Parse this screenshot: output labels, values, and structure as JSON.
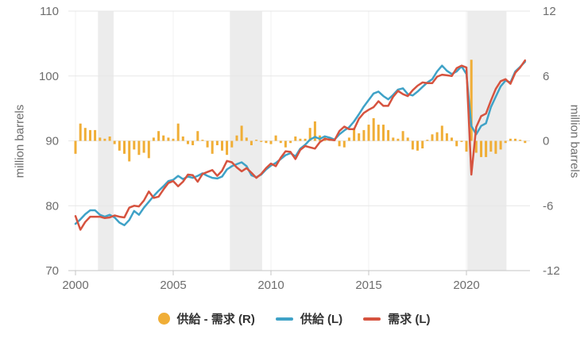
{
  "colors": {
    "background": "#ffffff",
    "bar": "#F0AE37",
    "supply_line": "#3FA2C7",
    "demand_line": "#D6533F",
    "recession_band": "#ececec",
    "gridline": "#e7e7e7",
    "vertical_gridline": "#f0f0f0",
    "axis_line": "#c4c4c4",
    "tick_text": "#6d6d6d",
    "legend_text": "#333333"
  },
  "legend": {
    "items": [
      {
        "label": "供給 - 需求 (R)",
        "marker": "circle",
        "color": "#F0AE37"
      },
      {
        "label": "供給 (L)",
        "marker": "line",
        "color": "#3FA2C7"
      },
      {
        "label": "需求 (L)",
        "marker": "line",
        "color": "#D6533F"
      }
    ]
  },
  "chart_data": {
    "type": "combo-bar-line",
    "title": "",
    "frequency": "quarterly",
    "x_start_year": 2000,
    "x_step_years": 0.25,
    "x_axis": {
      "tick_labels": [
        "2000",
        "2005",
        "2010",
        "2015",
        "2020"
      ],
      "tick_years": [
        2000,
        2005,
        2010,
        2015,
        2020
      ]
    },
    "left_axis": {
      "label": "million barrels",
      "ticks": [
        70,
        80,
        90,
        100,
        110
      ],
      "range": [
        70,
        110
      ]
    },
    "right_axis": {
      "label": "million barrels",
      "ticks": [
        -12,
        -6,
        0,
        6,
        12
      ],
      "range": [
        -12,
        12
      ]
    },
    "recession_bands_years": [
      [
        2001.15,
        2001.95
      ],
      [
        2007.9,
        2009.55
      ],
      [
        2020.05,
        2022.05
      ]
    ],
    "series": [
      {
        "name": "供給 - 需求 (R)",
        "type": "bar",
        "axis": "right",
        "color": "#F0AE37",
        "values": [
          -1.2,
          1.6,
          1.2,
          1.0,
          1.0,
          0.3,
          0.2,
          0.4,
          -0.3,
          -0.9,
          -1.2,
          -1.9,
          -0.8,
          -1.3,
          -1.1,
          -1.6,
          0.3,
          0.9,
          0.5,
          0.3,
          0.2,
          1.6,
          0.4,
          -0.3,
          -0.4,
          0.9,
          0.1,
          -0.6,
          -1.2,
          -0.4,
          -0.9,
          -1.3,
          -0.6,
          0.5,
          1.4,
          0.3,
          -0.4,
          0.1,
          -0.1,
          -0.2,
          -0.3,
          0.5,
          -0.2,
          -0.6,
          -0.2,
          0.4,
          0.2,
          0.2,
          1.2,
          1.8,
          0.5,
          0.4,
          0.3,
          0.1,
          -0.5,
          -0.6,
          0.3,
          1.2,
          0.7,
          1.0,
          1.5,
          2.1,
          1.5,
          1.5,
          1.0,
          0.3,
          0.2,
          0.9,
          0.3,
          -0.8,
          -0.9,
          -0.7,
          0.1,
          0.6,
          0.8,
          1.4,
          0.7,
          0.3,
          -0.5,
          -0.1,
          -1.0,
          7.5,
          -1.1,
          -1.5,
          -1.5,
          -1.0,
          -1.2,
          -0.8,
          -0.2,
          0.2,
          0.2,
          0.1,
          -0.2
        ]
      },
      {
        "name": "供給 (L)",
        "type": "line",
        "axis": "left",
        "color": "#3FA2C7",
        "values": [
          77.2,
          77.9,
          78.7,
          79.3,
          79.3,
          78.6,
          78.3,
          78.6,
          78.2,
          77.4,
          77.0,
          77.8,
          79.2,
          78.6,
          79.7,
          80.6,
          81.5,
          82.3,
          83.0,
          83.8,
          84.0,
          84.6,
          84.1,
          84.5,
          84.3,
          84.6,
          85.0,
          84.6,
          84.3,
          84.2,
          84.5,
          85.6,
          86.1,
          86.4,
          86.7,
          86.1,
          84.7,
          84.4,
          84.8,
          85.6,
          86.2,
          86.6,
          87.2,
          87.8,
          88.1,
          87.6,
          88.8,
          89.4,
          90.2,
          90.6,
          90.3,
          90.7,
          90.5,
          90.2,
          91.0,
          91.6,
          92.1,
          93.0,
          94.1,
          95.3,
          96.3,
          97.3,
          97.6,
          96.9,
          96.4,
          97.1,
          97.9,
          98.1,
          97.2,
          97.0,
          97.6,
          98.3,
          99.0,
          99.5,
          100.7,
          101.6,
          100.8,
          100.3,
          100.7,
          101.5,
          100.3,
          92.3,
          91.0,
          92.3,
          92.7,
          95.2,
          96.8,
          98.4,
          99.3,
          99.0,
          100.7,
          101.4,
          102.2
        ]
      },
      {
        "name": "需求 (L)",
        "type": "line",
        "axis": "left",
        "color": "#D6533F",
        "values": [
          78.4,
          76.3,
          77.5,
          78.3,
          78.3,
          78.3,
          78.1,
          78.2,
          78.5,
          78.3,
          78.2,
          79.7,
          80.0,
          79.9,
          80.8,
          82.2,
          81.2,
          81.4,
          82.5,
          83.5,
          83.8,
          83.0,
          83.7,
          84.8,
          84.7,
          83.7,
          84.9,
          85.2,
          85.5,
          84.6,
          85.4,
          86.9,
          86.7,
          85.9,
          85.3,
          85.8,
          85.1,
          84.3,
          84.9,
          85.8,
          86.5,
          86.1,
          87.4,
          88.4,
          88.3,
          87.2,
          88.6,
          89.2,
          89.0,
          88.8,
          89.8,
          90.3,
          90.2,
          90.1,
          91.5,
          92.2,
          91.8,
          91.8,
          93.4,
          94.3,
          94.8,
          95.2,
          96.1,
          95.4,
          95.4,
          96.8,
          97.7,
          97.2,
          96.9,
          97.8,
          98.5,
          99.0,
          98.9,
          98.9,
          99.9,
          100.2,
          100.1,
          100.0,
          101.2,
          101.6,
          101.3,
          84.8,
          92.1,
          93.8,
          94.2,
          96.2,
          98.0,
          99.2,
          99.5,
          98.8,
          100.5,
          101.3,
          102.4
        ]
      }
    ]
  }
}
